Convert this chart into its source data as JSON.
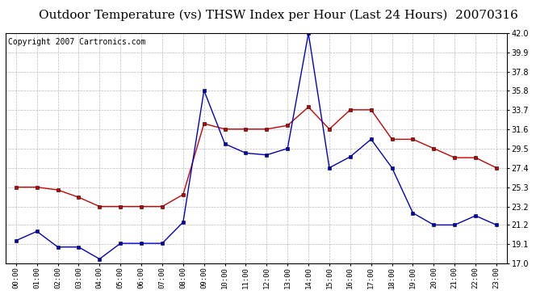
{
  "title": "Outdoor Temperature (vs) THSW Index per Hour (Last 24 Hours)  20070316",
  "copyright": "Copyright 2007 Cartronics.com",
  "hours": [
    "00:00",
    "01:00",
    "02:00",
    "03:00",
    "04:00",
    "05:00",
    "06:00",
    "07:00",
    "08:00",
    "09:00",
    "10:00",
    "11:00",
    "12:00",
    "13:00",
    "14:00",
    "15:00",
    "16:00",
    "17:00",
    "18:00",
    "19:00",
    "20:00",
    "21:00",
    "22:00",
    "23:00"
  ],
  "temp_red": [
    25.3,
    25.3,
    25.0,
    24.2,
    23.2,
    23.2,
    23.2,
    23.2,
    24.5,
    32.2,
    31.6,
    31.6,
    31.6,
    32.0,
    34.0,
    31.6,
    33.7,
    33.7,
    30.5,
    30.5,
    29.5,
    28.5,
    28.5,
    27.4
  ],
  "thsw_blue": [
    19.5,
    20.5,
    18.8,
    18.8,
    17.5,
    19.2,
    19.2,
    19.2,
    21.5,
    35.8,
    30.0,
    29.0,
    28.8,
    29.5,
    42.0,
    27.4,
    28.6,
    30.5,
    27.4,
    22.5,
    21.2,
    21.2,
    22.2,
    21.2
  ],
  "ylim_min": 17.0,
  "ylim_max": 42.0,
  "yticks": [
    17.0,
    19.1,
    21.2,
    23.2,
    25.3,
    27.4,
    29.5,
    31.6,
    33.7,
    35.8,
    37.8,
    39.9,
    42.0
  ],
  "bg_color": "#ffffff",
  "grid_color": "#aaaaaa",
  "line_color_red": "#cc0000",
  "line_color_blue": "#0000cc",
  "title_fontsize": 11,
  "copyright_fontsize": 7
}
